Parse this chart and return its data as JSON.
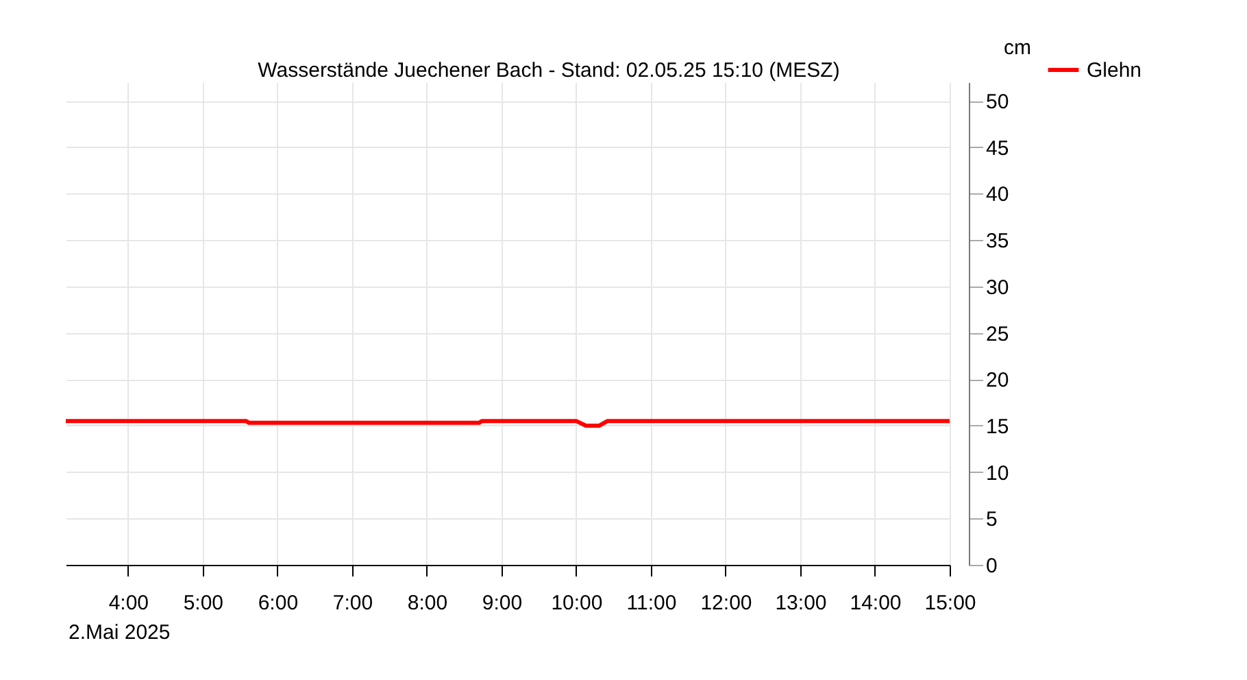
{
  "chart_data": {
    "type": "line",
    "title": "Wasserstände Juechener Bach - Stand: 02.05.25 15:10 (MESZ)",
    "ylabel": "cm",
    "x": [
      3.1667,
      5.58,
      5.62,
      8.7,
      8.74,
      10.0,
      10.13,
      10.31,
      10.42,
      15.0
    ],
    "series": [
      {
        "name": "Glehn",
        "color": "#ff0000",
        "values": [
          15.5,
          15.5,
          15.3,
          15.3,
          15.5,
          15.5,
          15.0,
          15.0,
          15.5,
          15.5
        ]
      }
    ],
    "xlim": [
      3.1667,
      15.0
    ],
    "xticks": [
      {
        "value": 4,
        "label": "4:00"
      },
      {
        "value": 5,
        "label": "5:00"
      },
      {
        "value": 6,
        "label": "6:00"
      },
      {
        "value": 7,
        "label": "7:00"
      },
      {
        "value": 8,
        "label": "8:00"
      },
      {
        "value": 9,
        "label": "9:00"
      },
      {
        "value": 10,
        "label": "10:00"
      },
      {
        "value": 11,
        "label": "11:00"
      },
      {
        "value": 12,
        "label": "12:00"
      },
      {
        "value": 13,
        "label": "13:00"
      },
      {
        "value": 14,
        "label": "14:00"
      },
      {
        "value": 15,
        "label": "15:00"
      }
    ],
    "ylim": [
      0,
      52
    ],
    "yticks": [
      0,
      5,
      10,
      15,
      20,
      25,
      30,
      35,
      40,
      45,
      50
    ],
    "annotations": [
      "2.Mai 2025"
    ],
    "grid": true,
    "legend": "top right",
    "marker": "none",
    "line_style": "solid"
  }
}
